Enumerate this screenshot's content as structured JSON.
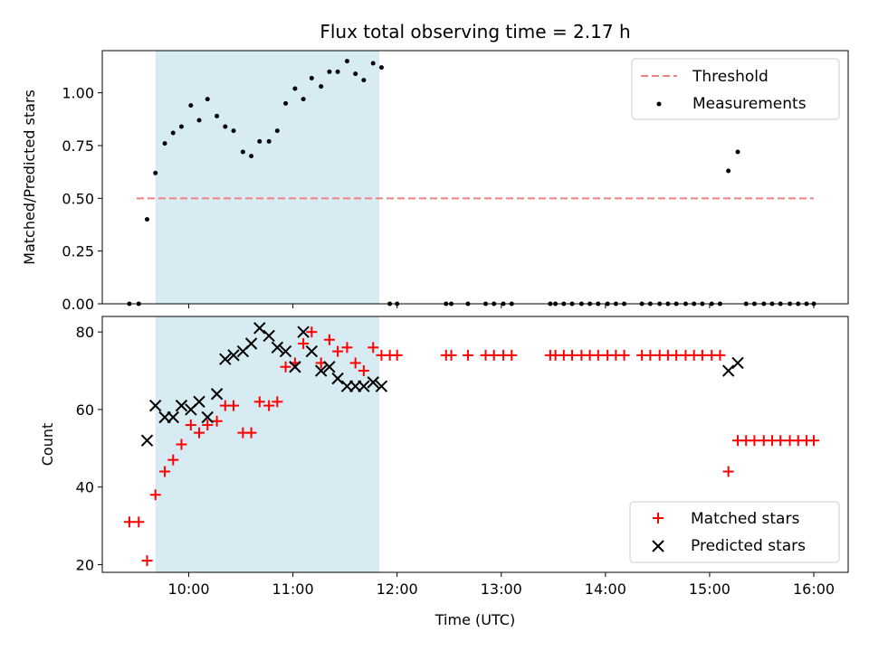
{
  "chart_data": [
    {
      "type": "scatter",
      "title": "Flux total observing time = 2.17 h",
      "xlabel": "",
      "ylabel": "Matched/Predicted stars",
      "x_unit": "time of day (UTC), hours",
      "xlim": [
        9.17,
        16.33
      ],
      "ylim": [
        0.0,
        1.2
      ],
      "yticks": [
        0.0,
        0.25,
        0.5,
        0.75,
        1.0
      ],
      "ytick_labels": [
        "0.00",
        "0.25",
        "0.50",
        "0.75",
        "1.00"
      ],
      "highlight_span": [
        9.68,
        11.83
      ],
      "legend_position": "upper right",
      "threshold": {
        "name": "Threshold",
        "value": 0.5,
        "x_range": [
          9.5,
          16.0
        ],
        "color": "#f08080",
        "style": "dashed"
      },
      "series": [
        {
          "name": "Measurements",
          "marker": "dot",
          "color": "#000000",
          "x": [
            9.43,
            9.52,
            9.6,
            9.68,
            9.77,
            9.85,
            9.93,
            10.02,
            10.1,
            10.18,
            10.27,
            10.35,
            10.43,
            10.52,
            10.6,
            10.68,
            10.77,
            10.85,
            10.93,
            11.02,
            11.1,
            11.18,
            11.27,
            11.35,
            11.43,
            11.52,
            11.6,
            11.68,
            11.77,
            11.85,
            11.93,
            12.0,
            12.47,
            12.52,
            12.68,
            12.85,
            12.93,
            13.02,
            13.1,
            13.47,
            13.52,
            13.6,
            13.68,
            13.77,
            13.85,
            13.93,
            14.02,
            14.1,
            14.18,
            14.35,
            14.43,
            14.52,
            14.6,
            14.68,
            14.77,
            14.85,
            14.93,
            15.02,
            15.1,
            15.18,
            15.27,
            15.35,
            15.43,
            15.52,
            15.6,
            15.68,
            15.77,
            15.85,
            15.93,
            16.0
          ],
          "y": [
            0.0,
            0.0,
            0.4,
            0.62,
            0.76,
            0.81,
            0.84,
            0.94,
            0.87,
            0.97,
            0.89,
            0.84,
            0.82,
            0.72,
            0.7,
            0.77,
            0.77,
            0.82,
            0.95,
            1.02,
            0.97,
            1.07,
            1.03,
            1.1,
            1.1,
            1.15,
            1.09,
            1.06,
            1.14,
            1.12,
            0.0,
            0.0,
            0.0,
            0.0,
            0.0,
            0.0,
            0.0,
            0.0,
            0.0,
            0.0,
            0.0,
            0.0,
            0.0,
            0.0,
            0.0,
            0.0,
            0.0,
            0.0,
            0.0,
            0.0,
            0.0,
            0.0,
            0.0,
            0.0,
            0.0,
            0.0,
            0.0,
            0.0,
            0.0,
            0.63,
            0.72,
            0.0,
            0.0,
            0.0,
            0.0,
            0.0,
            0.0,
            0.0,
            0.0,
            0.0
          ]
        }
      ]
    },
    {
      "type": "scatter",
      "title": "",
      "xlabel": "Time (UTC)",
      "ylabel": "Count",
      "x_unit": "time of day (UTC), hours",
      "xlim": [
        9.17,
        16.33
      ],
      "ylim": [
        18,
        84
      ],
      "yticks": [
        20,
        40,
        60,
        80
      ],
      "ytick_labels": [
        "20",
        "40",
        "60",
        "80"
      ],
      "xticks": [
        10,
        11,
        12,
        13,
        14,
        15,
        16
      ],
      "xtick_labels": [
        "10:00",
        "11:00",
        "12:00",
        "13:00",
        "14:00",
        "15:00",
        "16:00"
      ],
      "highlight_span": [
        9.68,
        11.83
      ],
      "legend_position": "lower right",
      "series": [
        {
          "name": "Matched stars",
          "marker": "plus",
          "color": "#ff0000",
          "x": [
            9.43,
            9.52,
            9.6,
            9.68,
            9.77,
            9.85,
            9.93,
            10.02,
            10.1,
            10.18,
            10.27,
            10.35,
            10.43,
            10.52,
            10.6,
            10.68,
            10.77,
            10.85,
            10.93,
            11.02,
            11.1,
            11.18,
            11.27,
            11.35,
            11.43,
            11.52,
            11.6,
            11.68,
            11.77,
            11.85,
            11.93,
            12.0,
            12.47,
            12.52,
            12.68,
            12.85,
            12.93,
            13.02,
            13.1,
            13.47,
            13.52,
            13.6,
            13.68,
            13.77,
            13.85,
            13.93,
            14.02,
            14.1,
            14.18,
            14.35,
            14.43,
            14.52,
            14.6,
            14.68,
            14.77,
            14.85,
            14.93,
            15.02,
            15.1,
            15.18,
            15.27,
            15.35,
            15.43,
            15.52,
            15.6,
            15.68,
            15.77,
            15.85,
            15.93,
            16.0
          ],
          "y": [
            31,
            31,
            21,
            38,
            44,
            47,
            51,
            56,
            54,
            56,
            57,
            61,
            61,
            54,
            54,
            62,
            61,
            62,
            71,
            72,
            77,
            80,
            72,
            78,
            75,
            76,
            72,
            70,
            76,
            74,
            74,
            74,
            74,
            74,
            74,
            74,
            74,
            74,
            74,
            74,
            74,
            74,
            74,
            74,
            74,
            74,
            74,
            74,
            74,
            74,
            74,
            74,
            74,
            74,
            74,
            74,
            74,
            74,
            74,
            44,
            52,
            52,
            52,
            52,
            52,
            52,
            52,
            52,
            52,
            52
          ]
        },
        {
          "name": "Predicted stars",
          "marker": "x",
          "color": "#000000",
          "x": [
            9.6,
            9.68,
            9.77,
            9.85,
            9.93,
            10.02,
            10.1,
            10.18,
            10.27,
            10.35,
            10.43,
            10.52,
            10.6,
            10.68,
            10.77,
            10.85,
            10.93,
            11.02,
            11.1,
            11.18,
            11.27,
            11.35,
            11.43,
            11.52,
            11.6,
            11.68,
            11.77,
            11.85,
            15.18,
            15.27
          ],
          "y": [
            52,
            61,
            58,
            58,
            61,
            60,
            62,
            58,
            64,
            73,
            74,
            75,
            77,
            81,
            79,
            76,
            75,
            71,
            80,
            75,
            70,
            71,
            68,
            66,
            66,
            66,
            67,
            66,
            70,
            72
          ]
        }
      ]
    }
  ]
}
